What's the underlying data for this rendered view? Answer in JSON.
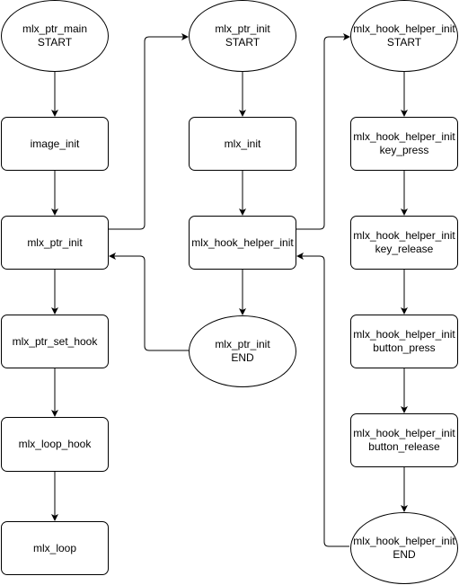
{
  "nodes": {
    "main_start": {
      "line1": "mlx_ptr_main",
      "line2": "START"
    },
    "image_init": {
      "line1": "image_init"
    },
    "ptr_init_call": {
      "line1": "mlx_ptr_init"
    },
    "set_hook": {
      "line1": "mlx_ptr_set_hook"
    },
    "loop_hook": {
      "line1": "mlx_loop_hook"
    },
    "loop": {
      "line1": "mlx_loop"
    },
    "ptr_init_start": {
      "line1": "mlx_ptr_init",
      "line2": "START"
    },
    "mlx_init": {
      "line1": "mlx_init"
    },
    "helper_call": {
      "line1": "mlx_hook_helper_init"
    },
    "ptr_init_end": {
      "line1": "mlx_ptr_init",
      "line2": "END"
    },
    "helper_start": {
      "line1": "mlx_hook_helper_init",
      "line2": "START"
    },
    "key_press": {
      "line1": "mlx_hook_helper_init",
      "line2": "key_press"
    },
    "key_release": {
      "line1": "mlx_hook_helper_init",
      "line2": "key_release"
    },
    "button_press": {
      "line1": "mlx_hook_helper_init",
      "line2": "button_press"
    },
    "button_release": {
      "line1": "mlx_hook_helper_init",
      "line2": "button_release"
    },
    "helper_end": {
      "line1": "mlx_hook_helper_init",
      "line2": "END"
    }
  },
  "colors": {
    "stroke": "#000000",
    "fill": "#ffffff",
    "text": "#000000"
  }
}
